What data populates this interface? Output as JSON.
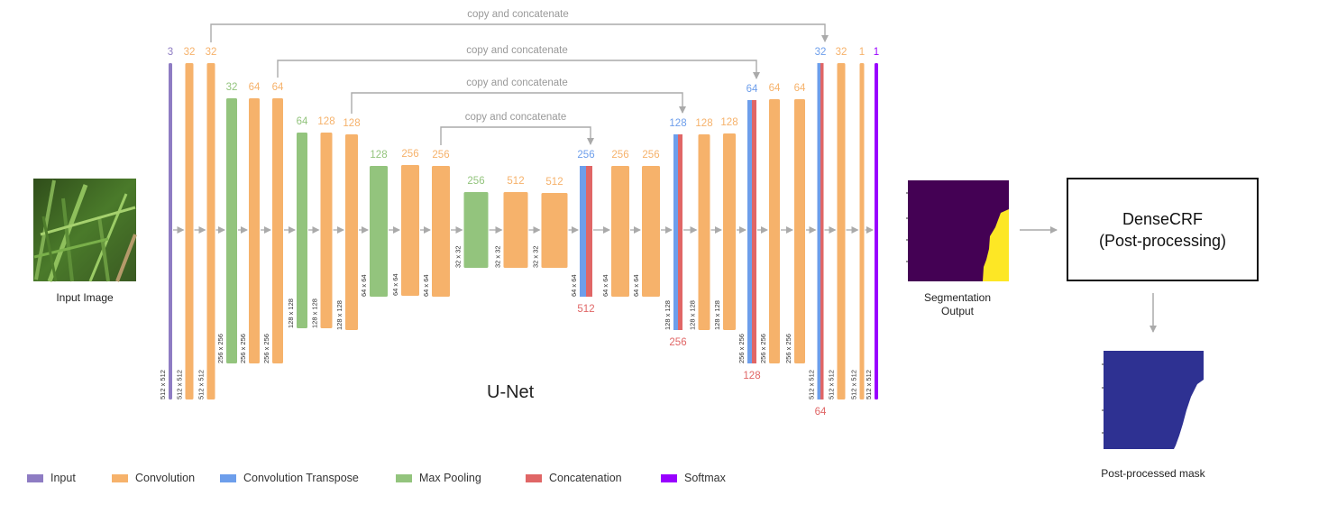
{
  "colors": {
    "input": "#8e7cc3",
    "convolution": "#f6b26b",
    "convolution_transpose": "#6d9eeb",
    "max_pooling": "#93c47d",
    "concatenation": "#e06666",
    "softmax": "#9900ff",
    "arrow": "#aaaaaa",
    "seg_background": "#440154",
    "seg_foreground": "#fde725",
    "mask": "#2e3192"
  },
  "input_image": {
    "label": "Input Image"
  },
  "unet_title": "U-Net",
  "skip_label": "copy and concatenate",
  "layers": [
    {
      "type": "input",
      "top": "3",
      "side": "512 x 512"
    },
    {
      "type": "conv",
      "top": "32",
      "side": "512 x 512"
    },
    {
      "type": "conv",
      "top": "32",
      "side": "512 x 512"
    },
    {
      "type": "pool",
      "top": "32",
      "side": "256 x 256"
    },
    {
      "type": "conv",
      "top": "64",
      "side": "256 x 256"
    },
    {
      "type": "conv",
      "top": "64",
      "side": "256 x 256"
    },
    {
      "type": "pool",
      "top": "64",
      "side": "128 x 128"
    },
    {
      "type": "conv",
      "top": "128",
      "side": "128 x 128"
    },
    {
      "type": "conv",
      "top": "128",
      "side": "128 x 128"
    },
    {
      "type": "pool",
      "top": "128",
      "side": "64 x 64"
    },
    {
      "type": "conv",
      "top": "256",
      "side": "64 x 64"
    },
    {
      "type": "conv",
      "top": "256",
      "side": "64 x 64"
    },
    {
      "type": "pool",
      "top": "256",
      "side": "32 x 32"
    },
    {
      "type": "conv",
      "top": "512",
      "side": "32 x 32"
    },
    {
      "type": "conv",
      "top": "512",
      "side": "32 x 32"
    },
    {
      "type": "up",
      "top": "256",
      "bottom": "512",
      "side": "64 x 64"
    },
    {
      "type": "conv",
      "top": "256",
      "side": "64 x 64"
    },
    {
      "type": "conv",
      "top": "256",
      "side": "64 x 64"
    },
    {
      "type": "up",
      "top": "128",
      "bottom": "256",
      "side": "128 x 128"
    },
    {
      "type": "conv",
      "top": "128",
      "side": "128 x 128"
    },
    {
      "type": "conv",
      "top": "128",
      "side": "128 x 128"
    },
    {
      "type": "up",
      "top": "64",
      "bottom": "128",
      "side": "256 x 256"
    },
    {
      "type": "conv",
      "top": "64",
      "side": "256 x 256"
    },
    {
      "type": "conv",
      "top": "64",
      "side": "256 x 256"
    },
    {
      "type": "up",
      "top": "32",
      "bottom": "64",
      "side": "512 x 512"
    },
    {
      "type": "conv",
      "top": "32",
      "side": "512 x 512"
    },
    {
      "type": "conv",
      "top": "1",
      "side": "512 x 512"
    },
    {
      "type": "softmax",
      "top": "1",
      "side": "512 x 512"
    }
  ],
  "segmentation": {
    "label_line1": "Segmentation",
    "label_line2": "Output"
  },
  "densecrf": {
    "line1": "DenseCRF",
    "line2": "(Post-processing)"
  },
  "mask": {
    "label": "Post-processed mask"
  },
  "legend": [
    {
      "key": "input",
      "label": "Input"
    },
    {
      "key": "convolution",
      "label": "Convolution"
    },
    {
      "key": "convolution_transpose",
      "label": "Convolution Transpose"
    },
    {
      "key": "max_pooling",
      "label": "Max Pooling"
    },
    {
      "key": "concatenation",
      "label": "Concatenation"
    },
    {
      "key": "softmax",
      "label": "Softmax"
    }
  ]
}
